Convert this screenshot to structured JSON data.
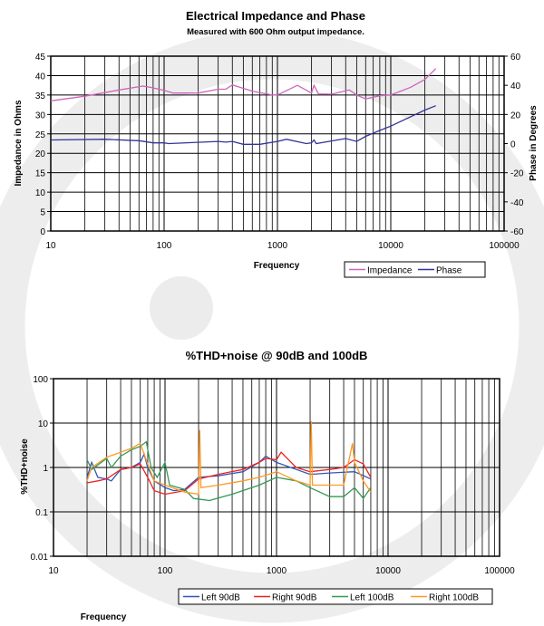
{
  "chart_data": [
    {
      "type": "line",
      "title": "Electrical Impedance and Phase",
      "subtitle": "Measured with 600 Ohm output impedance.",
      "xlabel": "Frequency",
      "ylabel": "Impedance in Ohms",
      "y2label": "Phase in Degrees",
      "xscale": "log",
      "xlim": [
        10,
        100000
      ],
      "ylim": [
        0,
        45
      ],
      "y2lim": [
        -60,
        60
      ],
      "xticks": [
        "10",
        "100",
        "1000",
        "10000",
        "100000"
      ],
      "yticks": [
        "0",
        "5",
        "10",
        "15",
        "20",
        "25",
        "30",
        "35",
        "40",
        "45"
      ],
      "y2ticks": [
        "-60",
        "-40",
        "-20",
        "0",
        "20",
        "40",
        "60"
      ],
      "grid": true,
      "legend_position": "bottom-right",
      "series": [
        {
          "name": "Impedance",
          "axis": "left",
          "color": "#cc66bb",
          "x": [
            10,
            20,
            40,
            65,
            75,
            100,
            120,
            200,
            300,
            350,
            400,
            600,
            900,
            1000,
            1500,
            2000,
            2100,
            2300,
            3000,
            4300,
            5000,
            6000,
            8000,
            10000,
            15000,
            20000,
            25000
          ],
          "y": [
            33.5,
            34.7,
            36.3,
            37.3,
            37.0,
            36.2,
            35.5,
            35.5,
            36.5,
            36.5,
            37.6,
            36.0,
            35.0,
            35.0,
            37.5,
            35.5,
            37.5,
            35.3,
            35.2,
            36.3,
            35.0,
            34.0,
            34.8,
            35.0,
            37.0,
            39.0,
            41.8
          ]
        },
        {
          "name": "Phase",
          "axis": "right",
          "color": "#333399",
          "x": [
            10,
            30,
            60,
            80,
            100,
            110,
            300,
            350,
            400,
            500,
            700,
            1000,
            1200,
            1800,
            2000,
            2100,
            2200,
            4000,
            5000,
            6000,
            8000,
            10000,
            20000,
            25000
          ],
          "y": [
            2.5,
            3,
            2,
            0.5,
            0.5,
            0,
            1.5,
            1,
            1.5,
            -0.5,
            -0.5,
            1.5,
            3,
            0,
            0.5,
            2.5,
            0,
            3.5,
            1.5,
            5,
            9,
            12,
            23,
            26
          ]
        }
      ]
    },
    {
      "type": "line",
      "title": "%THD+noise @ 90dB and 100dB",
      "xlabel": "Frequency",
      "ylabel": "%THD+noise",
      "xscale": "log",
      "yscale": "log",
      "xlim": [
        10,
        100000
      ],
      "ylim": [
        0.01,
        100
      ],
      "xticks": [
        "10",
        "100",
        "1000",
        "10000",
        "100000"
      ],
      "yticks": [
        "0.01",
        "0.1",
        "1",
        "10",
        "100"
      ],
      "grid": true,
      "legend_position": "bottom",
      "series": [
        {
          "name": "Left 90dB",
          "color": "#3355bb",
          "x": [
            20,
            22,
            25,
            30,
            33,
            40,
            50,
            60,
            65,
            70,
            80,
            100,
            120,
            150,
            200,
            300,
            500,
            700,
            800,
            1000,
            1500,
            2000,
            3000,
            5000,
            7000
          ],
          "y": [
            0.6,
            1.3,
            0.6,
            0.55,
            0.5,
            0.9,
            1.0,
            1.3,
            2.0,
            1.0,
            0.5,
            0.35,
            0.3,
            0.32,
            0.6,
            0.65,
            0.8,
            1.3,
            1.8,
            1.3,
            0.9,
            0.7,
            0.75,
            0.8,
            0.55
          ]
        },
        {
          "name": "Right 90dB",
          "color": "#ee2222",
          "x": [
            20,
            25,
            30,
            40,
            50,
            60,
            70,
            80,
            100,
            150,
            200,
            300,
            500,
            700,
            800,
            1000,
            1100,
            1500,
            2000,
            3000,
            4000,
            5000,
            6000,
            7000
          ],
          "y": [
            0.45,
            0.5,
            0.55,
            0.9,
            1.0,
            1.2,
            0.6,
            0.3,
            0.25,
            0.3,
            0.55,
            0.7,
            0.9,
            1.3,
            1.6,
            1.5,
            2.2,
            1.0,
            0.8,
            0.9,
            1.0,
            1.5,
            1.2,
            0.6
          ]
        },
        {
          "name": "Left 100dB",
          "color": "#339955",
          "x": [
            20,
            22,
            30,
            33,
            40,
            50,
            60,
            68,
            75,
            85,
            100,
            110,
            150,
            180,
            250,
            400,
            700,
            1000,
            1500,
            2000,
            3000,
            4000,
            5000,
            6000,
            7000
          ],
          "y": [
            1.5,
            0.9,
            1.6,
            1.0,
            1.8,
            2.5,
            3.0,
            3.8,
            1.0,
            0.6,
            1.3,
            0.4,
            0.32,
            0.2,
            0.18,
            0.25,
            0.4,
            0.6,
            0.5,
            0.35,
            0.22,
            0.22,
            0.35,
            0.2,
            0.35
          ]
        },
        {
          "name": "Right 100dB",
          "color": "#ff9922",
          "x": [
            20,
            22,
            30,
            40,
            50,
            60,
            70,
            80,
            100,
            150,
            200,
            205,
            210,
            300,
            500,
            700,
            1000,
            1500,
            2000,
            2050,
            2100,
            3000,
            4000,
            4800,
            5000,
            6000,
            7000
          ],
          "y": [
            0.5,
            1.0,
            1.7,
            2.2,
            2.7,
            3.5,
            1.2,
            0.5,
            0.4,
            0.28,
            0.25,
            7,
            0.35,
            0.4,
            0.5,
            0.6,
            0.8,
            0.5,
            0.4,
            11,
            0.4,
            0.4,
            0.4,
            3.5,
            1.3,
            0.5,
            0.28
          ]
        }
      ]
    }
  ]
}
